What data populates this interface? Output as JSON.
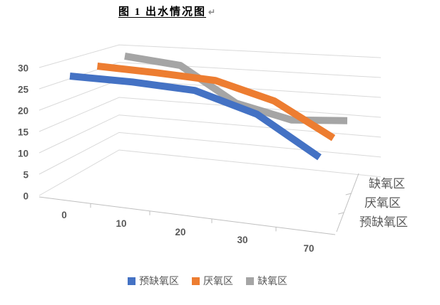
{
  "title": {
    "text": "图 1 出水情况图",
    "paragraph_mark": "↵"
  },
  "chart_data": {
    "type": "line",
    "projection": "3d-ribbon",
    "title": "图 1 出水情况图",
    "categories": [
      "0",
      "10",
      "20",
      "30",
      "70"
    ],
    "series": [
      {
        "name": "预缺氧区",
        "color": "#4472C4",
        "values": [
          28.9,
          29.3,
          29.1,
          25.3,
          17.0
        ]
      },
      {
        "name": "厌氧区",
        "color": "#ED7D31",
        "values": [
          29.5,
          29.6,
          29.4,
          26.0,
          18.5
        ]
      },
      {
        "name": "缺氧区",
        "color": "#A5A5A5",
        "values": [
          30.2,
          29.4,
          21.0,
          18.2,
          19.7
        ]
      }
    ],
    "value_axis": {
      "min": 0,
      "max": 30,
      "step": 5,
      "ticks": [
        0,
        5,
        10,
        15,
        20,
        25,
        30
      ]
    },
    "depth_axis_labels_top_to_bottom": [
      "缺氧区",
      "厌氧区",
      "预缺氧区"
    ],
    "legend": {
      "position": "bottom",
      "entries": [
        "预缺氧区",
        "厌氧区",
        "缺氧区"
      ]
    },
    "gridlines": true,
    "grid_color": "#D9D9D9",
    "axis_color": "#BFBFBF",
    "label_color": "#595959"
  }
}
